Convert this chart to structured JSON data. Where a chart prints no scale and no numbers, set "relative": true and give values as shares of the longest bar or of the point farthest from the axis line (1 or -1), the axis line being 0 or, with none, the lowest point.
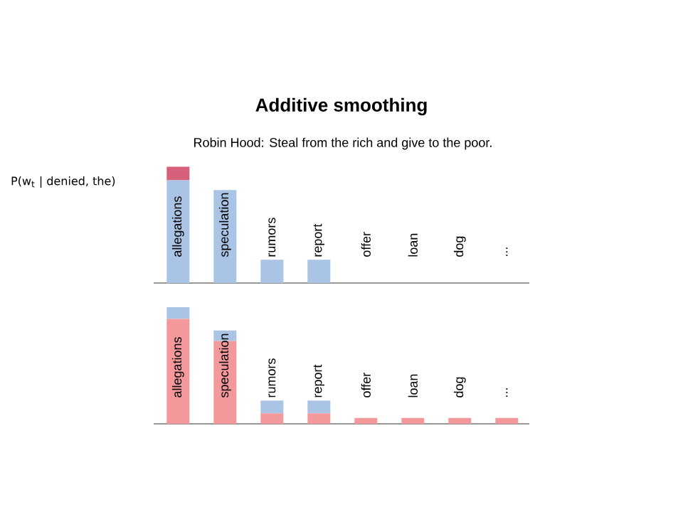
{
  "chart_data": [
    {
      "type": "bar",
      "title": "Additive smoothing",
      "subtitle": "Robin Hood: Steal from the rich and give to the poor.",
      "annotations": [
        "P(w$_{t}$ | denied, the)"
      ],
      "relative": true,
      "stacked": true,
      "categories": [
        "allegations",
        "speculation",
        "rumors",
        "report",
        "offer",
        "loan",
        "dog",
        "..."
      ],
      "series": [
        {
          "color": "#aac4e6",
          "values": [
            0.885,
            0.8,
            0.2,
            0.2,
            0,
            0,
            0,
            0
          ]
        },
        {
          "color": "#d6607a",
          "values": [
            0.115,
            0,
            0,
            0,
            0,
            0,
            0,
            0
          ]
        }
      ]
    },
    {
      "type": "bar",
      "relative": true,
      "stacked": true,
      "categories": [
        "allegations",
        "speculation",
        "rumors",
        "report",
        "offer",
        "loan",
        "dog",
        "..."
      ],
      "series": [
        {
          "color": "#f4999b",
          "values": [
            0.9,
            0.71,
            0.09,
            0.09,
            0.05,
            0.05,
            0.05,
            0.05
          ]
        },
        {
          "color": "#aac4e6",
          "values": [
            0.1,
            0.09,
            0.11,
            0.11,
            0,
            0,
            0,
            0
          ]
        }
      ]
    }
  ]
}
